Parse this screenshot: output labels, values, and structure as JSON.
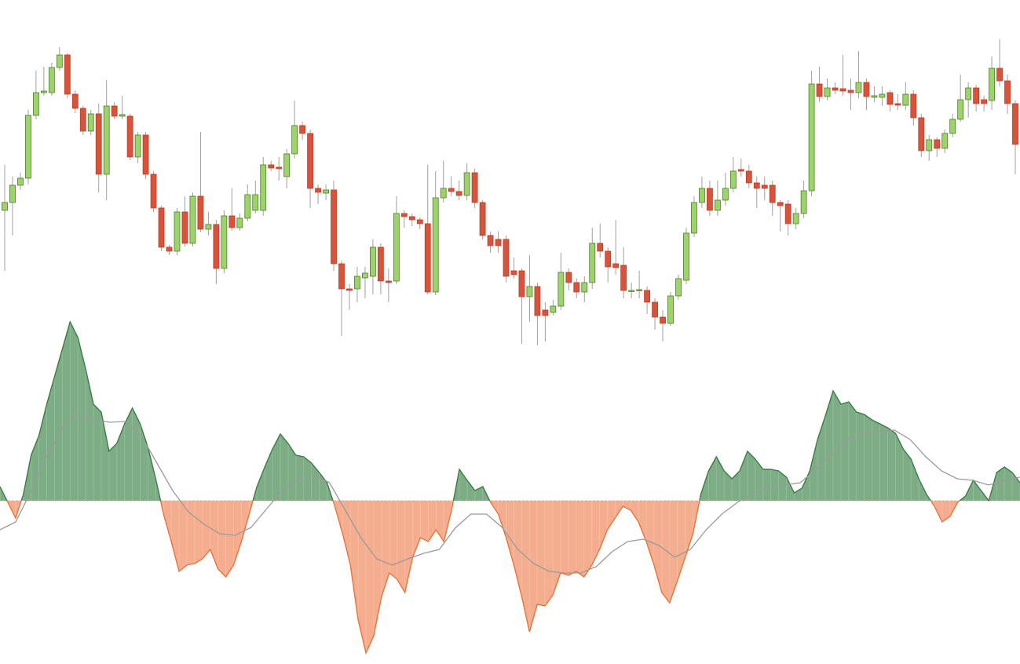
{
  "chart_data": [
    {
      "type": "candlestick",
      "up_color": "#9ed26a",
      "up_border": "#4d7f2e",
      "down_color": "#d9533a",
      "down_border": "#b8402a",
      "wick_color": "#a0a0a0",
      "ylim": [
        0,
        400
      ],
      "open": [
        172,
        182,
        204,
        213,
        293,
        322,
        322,
        354,
        370,
        320,
        302,
        273,
        295,
        218,
        305,
        292,
        292,
        240,
        268,
        218,
        175,
        125,
        120,
        170,
        130,
        190,
        148,
        154,
        98,
        165,
        150,
        162,
        172,
        172,
        230,
        227,
        215,
        244,
        280,
        270,
        200,
        194,
        198,
        104,
        72,
        72,
        86,
        88,
        125,
        82,
        82,
        168,
        164,
        160,
        155,
        68,
        188,
        200,
        196,
        191,
        220,
        182,
        140,
        135,
        135,
        95,
        95,
        62,
        75,
        45,
        42,
        50,
        93,
        80,
        68,
        80,
        130,
        120,
        104,
        102,
        69,
        70,
        70,
        55,
        36,
        28,
        63,
        83,
        143,
        182,
        200,
        172,
        185,
        200,
        224,
        222,
        207,
        204,
        204,
        182,
        180,
        155,
        168,
        197,
        333,
        317,
        328,
        327,
        325,
        322,
        335,
        316,
        316,
        322,
        308,
        306,
        320,
        290,
        248,
        262,
        251,
        270,
        288,
        313,
        328,
        313,
        312,
        353,
        337,
        308
      ],
      "high": [
        230,
        215,
        220,
        300,
        350,
        355,
        360,
        380,
        372,
        325,
        305,
        300,
        308,
        338,
        310,
        318,
        295,
        272,
        272,
        222,
        178,
        128,
        175,
        190,
        195,
        272,
        170,
        160,
        172,
        200,
        168,
        205,
        210,
        240,
        235,
        240,
        250,
        312,
        285,
        275,
        205,
        205,
        210,
        108,
        78,
        100,
        100,
        135,
        130,
        98,
        190,
        172,
        168,
        163,
        230,
        222,
        235,
        215,
        210,
        232,
        225,
        185,
        145,
        145,
        140,
        112,
        98,
        115,
        80,
        55,
        58,
        118,
        98,
        85,
        88,
        150,
        155,
        125,
        160,
        125,
        80,
        95,
        75,
        60,
        45,
        68,
        90,
        150,
        190,
        215,
        210,
        210,
        220,
        240,
        238,
        230,
        215,
        215,
        210,
        185,
        185,
        175,
        210,
        350,
        355,
        340,
        335,
        370,
        340,
        375,
        340,
        330,
        330,
        325,
        320,
        335,
        325,
        295,
        268,
        265,
        275,
        295,
        345,
        335,
        332,
        318,
        368,
        390,
        345,
        312
      ],
      "low": [
        95,
        140,
        198,
        205,
        288,
        318,
        318,
        350,
        315,
        296,
        268,
        268,
        195,
        185,
        288,
        288,
        236,
        232,
        212,
        170,
        120,
        115,
        115,
        126,
        126,
        144,
        140,
        78,
        92,
        146,
        146,
        158,
        168,
        165,
        222,
        210,
        200,
        238,
        262,
        175,
        180,
        185,
        95,
        12,
        45,
        55,
        60,
        65,
        65,
        55,
        78,
        150,
        152,
        148,
        65,
        64,
        182,
        190,
        185,
        185,
        175,
        135,
        118,
        118,
        80,
        85,
        2,
        30,
        0,
        5,
        38,
        45,
        70,
        60,
        55,
        72,
        112,
        80,
        90,
        60,
        60,
        60,
        40,
        20,
        5,
        25,
        58,
        78,
        138,
        175,
        165,
        165,
        178,
        195,
        215,
        200,
        175,
        185,
        165,
        145,
        140,
        148,
        162,
        190,
        310,
        312,
        320,
        318,
        300,
        315,
        300,
        310,
        305,
        298,
        300,
        300,
        280,
        240,
        235,
        240,
        245,
        265,
        285,
        290,
        298,
        298,
        300,
        330,
        295,
        218
      ],
      "close": [
        182,
        204,
        213,
        293,
        322,
        324,
        354,
        370,
        320,
        302,
        273,
        295,
        218,
        305,
        292,
        294,
        240,
        268,
        218,
        175,
        125,
        120,
        170,
        130,
        190,
        148,
        154,
        98,
        165,
        150,
        162,
        192,
        192,
        230,
        226,
        225,
        244,
        280,
        270,
        200,
        195,
        198,
        104,
        72,
        70,
        88,
        92,
        125,
        82,
        80,
        168,
        164,
        160,
        155,
        68,
        188,
        200,
        196,
        191,
        220,
        182,
        140,
        127,
        127,
        88,
        90,
        62,
        75,
        38,
        38,
        50,
        93,
        80,
        68,
        80,
        130,
        120,
        100,
        99,
        70,
        70,
        71,
        55,
        36,
        28,
        63,
        85,
        143,
        182,
        200,
        172,
        185,
        200,
        222,
        222,
        207,
        200,
        200,
        182,
        178,
        155,
        168,
        197,
        333,
        317,
        328,
        325,
        324,
        322,
        335,
        317,
        318,
        320,
        307,
        306,
        320,
        290,
        248,
        262,
        251,
        270,
        288,
        313,
        328,
        308,
        308,
        353,
        337,
        308,
        256
      ]
    },
    {
      "type": "area",
      "ylim": [
        -208,
        240
      ],
      "series": [
        {
          "type": "area",
          "color_above": "#7dad84",
          "line_above": "#3e7a48",
          "color_below": "#f4ae8f",
          "line_below": "#e8743c",
          "values": [
            18,
            -2,
            -22,
            8,
            58,
            83,
            123,
            158,
            193,
            228,
            208,
            168,
            123,
            113,
            63,
            73,
            98,
            118,
            98,
            68,
            28,
            -17,
            -52,
            -90,
            -82,
            -80,
            -74,
            -62,
            -87,
            -97,
            -82,
            -52,
            -17,
            18,
            43,
            66,
            85,
            73,
            58,
            56,
            48,
            36,
            23,
            -7,
            -42,
            -82,
            -152,
            -194,
            -172,
            -122,
            -92,
            -100,
            -117,
            -72,
            -47,
            -52,
            -37,
            -52,
            -12,
            40,
            26,
            13,
            18,
            -2,
            -17,
            -47,
            -82,
            -122,
            -167,
            -132,
            -134,
            -120,
            -92,
            -95,
            -90,
            -97,
            -82,
            -62,
            -37,
            -22,
            -7,
            -12,
            -27,
            -52,
            -82,
            -117,
            -130,
            -102,
            -72,
            -42,
            8,
            38,
            56,
            38,
            28,
            38,
            63,
            53,
            40,
            40,
            38,
            30,
            10,
            16,
            38,
            78,
            108,
            140,
            123,
            126,
            113,
            110,
            103,
            98,
            93,
            86,
            66,
            53,
            28,
            8,
            -7,
            -27,
            -20,
            -2,
            6,
            26,
            13,
            0,
            36,
            43,
            36,
            23
          ]
        },
        {
          "type": "line",
          "color": "#9a9a9a",
          "values": [
            -37,
            -27,
            13,
            58,
            93,
            111,
            103,
            100,
            101,
            83,
            48,
            13,
            -14,
            -30,
            -42,
            -44,
            -34,
            -10,
            13,
            28,
            33,
            23,
            -12,
            -47,
            -74,
            -82,
            -74,
            -67,
            -62,
            -35,
            -17,
            -17,
            -34,
            -62,
            -80,
            -90,
            -92,
            -92,
            -84,
            -65,
            -52,
            -49,
            -57,
            -72,
            -62,
            -37,
            -17,
            -2,
            10,
            18,
            20,
            23,
            40,
            60,
            78,
            86,
            88,
            90,
            78,
            56,
            38,
            28,
            26,
            20,
            26,
            30
          ]
        }
      ]
    }
  ]
}
